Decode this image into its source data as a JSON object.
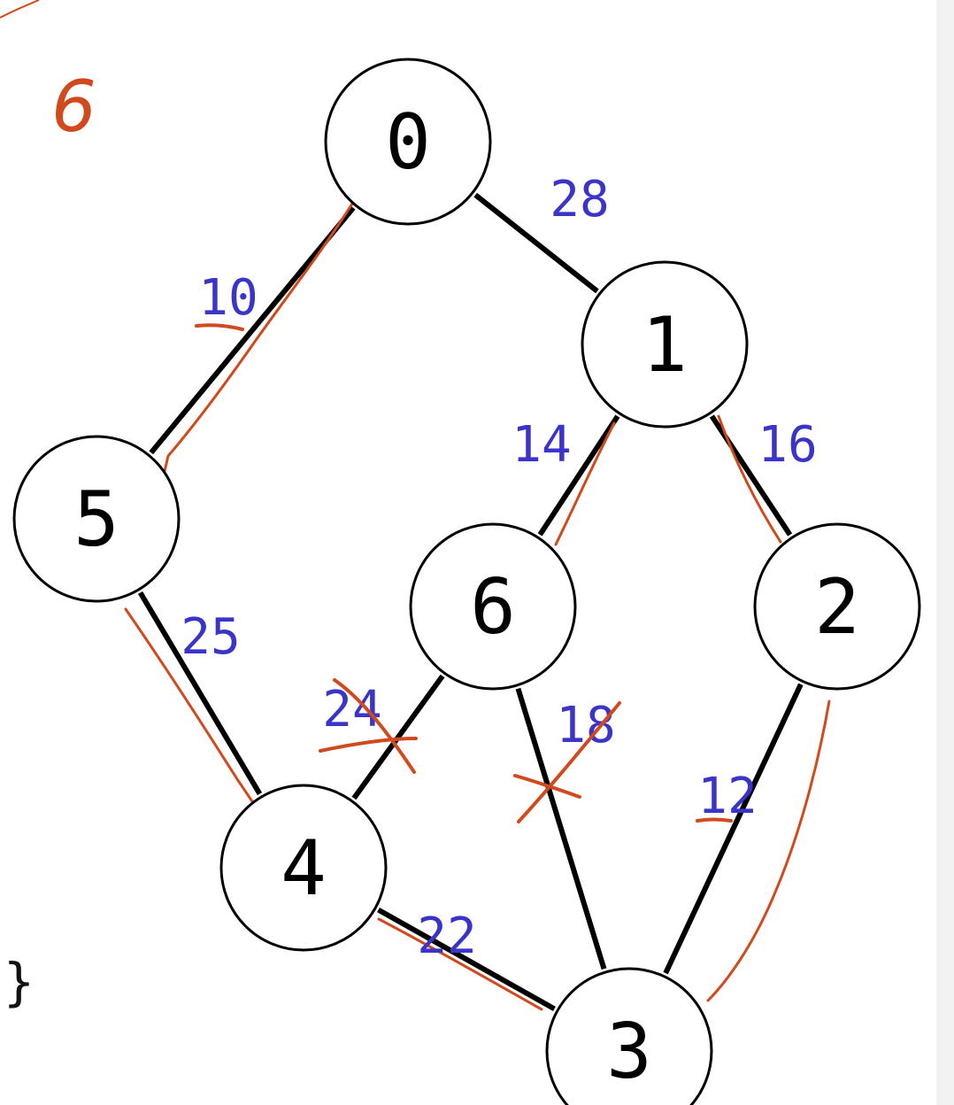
{
  "graph": {
    "nodes": [
      {
        "id": "0",
        "label": "0"
      },
      {
        "id": "1",
        "label": "1"
      },
      {
        "id": "2",
        "label": "2"
      },
      {
        "id": "3",
        "label": "3"
      },
      {
        "id": "4",
        "label": "4"
      },
      {
        "id": "5",
        "label": "5"
      },
      {
        "id": "6",
        "label": "6"
      }
    ],
    "edges": [
      {
        "from": "0",
        "to": "1",
        "weight": "28",
        "marked": false,
        "crossed": false,
        "underlined": false
      },
      {
        "from": "0",
        "to": "5",
        "weight": "10",
        "marked": true,
        "crossed": false,
        "underlined": true
      },
      {
        "from": "1",
        "to": "6",
        "weight": "14",
        "marked": true,
        "crossed": false,
        "underlined": false
      },
      {
        "from": "1",
        "to": "2",
        "weight": "16",
        "marked": true,
        "crossed": false,
        "underlined": false
      },
      {
        "from": "5",
        "to": "4",
        "weight": "25",
        "marked": true,
        "crossed": false,
        "underlined": false
      },
      {
        "from": "6",
        "to": "4",
        "weight": "24",
        "marked": false,
        "crossed": true,
        "underlined": false
      },
      {
        "from": "6",
        "to": "3",
        "weight": "18",
        "marked": false,
        "crossed": true,
        "underlined": false
      },
      {
        "from": "2",
        "to": "3",
        "weight": "12",
        "marked": true,
        "crossed": false,
        "underlined": true
      },
      {
        "from": "4",
        "to": "3",
        "weight": "22",
        "marked": true,
        "crossed": false,
        "underlined": false
      }
    ]
  },
  "annotation": {
    "text": "6"
  },
  "code_fragment": "}",
  "colors": {
    "edge": "#000000",
    "node_stroke": "#000000",
    "weight_label": "#3a35c8",
    "annotation_red": "#d04a1e",
    "background": "#ffffff"
  }
}
